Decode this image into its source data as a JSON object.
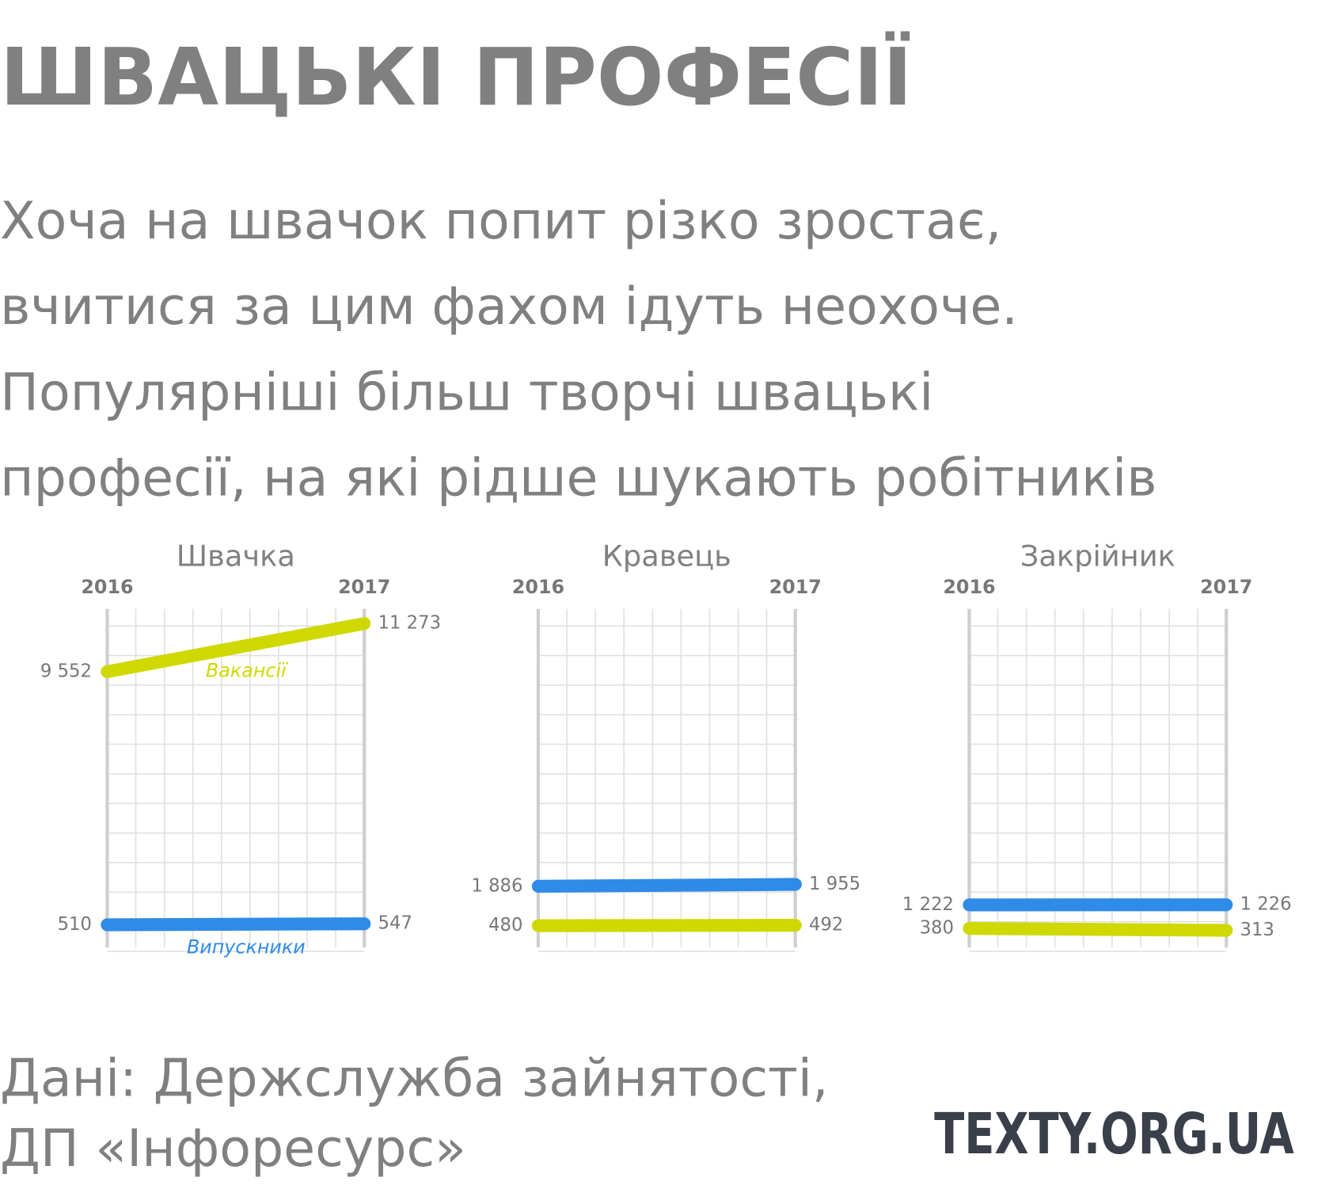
{
  "title": "ШВАЦЬКІ ПРОФЕСІЇ",
  "subtitle": [
    "Хоча на швачок попит різко зростає,",
    "вчитися за цим фахом ідуть неохоче.",
    "Популярніші більш творчі швацькі",
    "професії, на які рідше шукають робітників"
  ],
  "source": [
    "Дані: Держслужба зайнятості,",
    "ДП «Інфоресурс»"
  ],
  "logo": "TEXTY.ORG.UA",
  "chart_data": [
    {
      "type": "line",
      "title": "Швачка",
      "x": [
        "2016",
        "2017"
      ],
      "ylim": [
        -300,
        11800
      ],
      "grid": true,
      "series": [
        {
          "name": "Вакансії",
          "color": "#cfd800",
          "values": [
            9552,
            11273
          ],
          "value_labels": [
            "9 552",
            "11 273"
          ]
        },
        {
          "name": "Випускники",
          "color": "#2e8be8",
          "values": [
            510,
            547
          ]
        }
      ]
    },
    {
      "type": "line",
      "title": "Кравець",
      "x": [
        "2016",
        "2017"
      ],
      "ylim": [
        -300,
        11800
      ],
      "grid": true,
      "series": [
        {
          "color": "#2e8be8",
          "values": [
            1886,
            1955
          ],
          "value_labels": [
            "1 886",
            "1 955"
          ]
        },
        {
          "color": "#cfd800",
          "values": [
            480,
            492
          ]
        }
      ]
    },
    {
      "type": "line",
      "title": "Закрійник",
      "x": [
        "2016",
        "2017"
      ],
      "ylim": [
        -300,
        11800
      ],
      "grid": true,
      "series": [
        {
          "color": "#2e8be8",
          "values": [
            1222,
            1226
          ],
          "value_labels": [
            "1 222",
            "1 226"
          ]
        },
        {
          "color": "#cfd800",
          "values": [
            380,
            313
          ]
        }
      ]
    }
  ]
}
